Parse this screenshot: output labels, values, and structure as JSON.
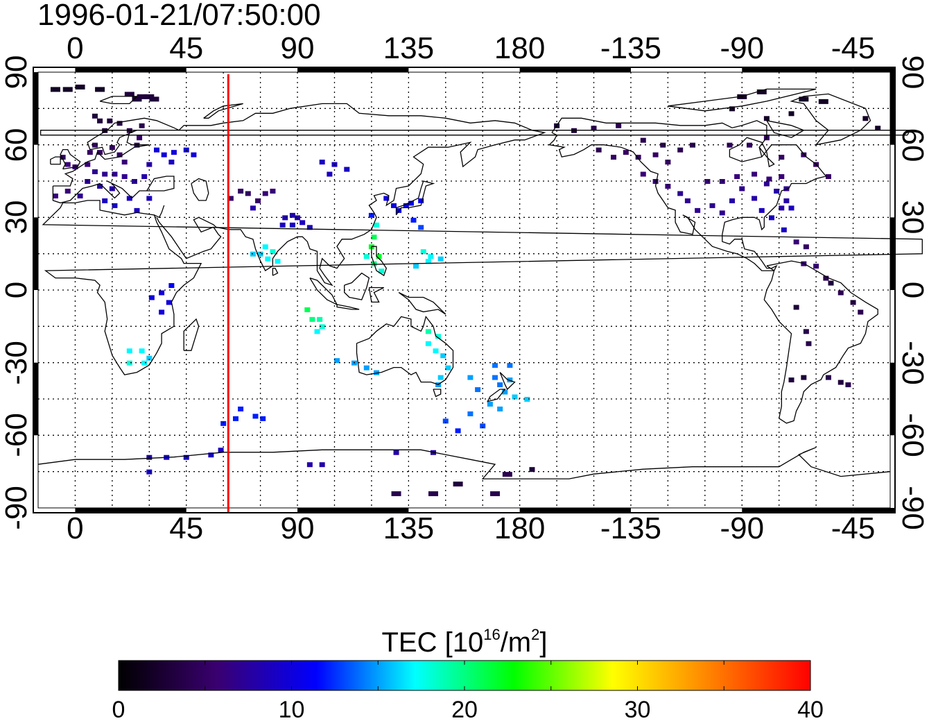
{
  "title": "1996-01-21/07:50:00",
  "map": {
    "projection": "cylindrical equidistant",
    "lon_range": [
      -15,
      330
    ],
    "lat_range": [
      -90,
      90
    ],
    "top_lon_labels": [
      "0",
      "45",
      "90",
      "135",
      "180",
      "-135",
      "-90",
      "-45"
    ],
    "bottom_lon_labels": [
      "0",
      "45",
      "90",
      "135",
      "180",
      "-135",
      "-90",
      "-45"
    ],
    "left_lat_labels": [
      "90",
      "60",
      "30",
      "0",
      "-30",
      "-60",
      "-90"
    ],
    "right_lat_labels": [
      "90",
      "60",
      "30",
      "0",
      "-30",
      "-60",
      "-90"
    ],
    "grid": "dotted, 15 degree spacing",
    "meridian_line_lon": 62,
    "meridian_line_color": "#ff0000"
  },
  "colorbar": {
    "label_main": "TEC  [10",
    "label_exp": "16",
    "label_unit": "/m",
    "label_exp2": "2",
    "label_end": "]",
    "ticks": [
      "0",
      "10",
      "20",
      "30",
      "40"
    ],
    "min": 0,
    "max": 40,
    "colors": [
      "#000000",
      "#3a0070",
      "#0000ff",
      "#00ffff",
      "#00ff00",
      "#ffff00",
      "#ff8000",
      "#ff0000"
    ]
  },
  "chart_data": {
    "type": "heatmap",
    "title": "1996-01-21/07:50:00",
    "value_label": "TEC [10^16/m^2]",
    "value_range": [
      0,
      40
    ],
    "points_lon_lat_tec": [
      [
        -8,
        83,
        2
      ],
      [
        -3,
        83,
        2
      ],
      [
        2,
        84,
        2
      ],
      [
        10,
        83,
        2
      ],
      [
        22,
        81,
        3
      ],
      [
        27,
        80,
        3
      ],
      [
        32,
        79,
        3
      ],
      [
        25,
        79,
        3
      ],
      [
        30,
        80,
        3
      ],
      [
        8,
        72,
        3
      ],
      [
        10,
        70,
        3
      ],
      [
        14,
        70,
        3
      ],
      [
        12,
        66,
        3
      ],
      [
        18,
        69,
        4
      ],
      [
        22,
        66,
        4
      ],
      [
        27,
        68,
        4
      ],
      [
        26,
        63,
        5
      ],
      [
        25,
        60,
        5
      ],
      [
        8,
        60,
        5
      ],
      [
        6,
        57,
        5
      ],
      [
        10,
        57,
        5
      ],
      [
        15,
        59,
        5
      ],
      [
        18,
        56,
        5
      ],
      [
        20,
        53,
        6
      ],
      [
        5,
        52,
        6
      ],
      [
        0,
        51,
        6
      ],
      [
        -3,
        52,
        6
      ],
      [
        -5,
        55,
        5
      ],
      [
        8,
        49,
        7
      ],
      [
        12,
        48,
        7
      ],
      [
        16,
        48,
        7
      ],
      [
        20,
        47,
        7
      ],
      [
        24,
        45,
        7
      ],
      [
        28,
        47,
        8
      ],
      [
        30,
        52,
        8
      ],
      [
        5,
        45,
        7
      ],
      [
        10,
        43,
        8
      ],
      [
        15,
        42,
        8
      ],
      [
        -3,
        41,
        6
      ],
      [
        -8,
        39,
        6
      ],
      [
        2,
        39,
        7
      ],
      [
        12,
        37,
        9
      ],
      [
        16,
        35,
        9
      ],
      [
        22,
        38,
        9
      ],
      [
        25,
        33,
        9
      ],
      [
        30,
        38,
        9
      ],
      [
        33,
        58,
        10
      ],
      [
        36,
        56,
        10
      ],
      [
        40,
        57,
        10
      ],
      [
        45,
        58,
        10
      ],
      [
        39,
        53,
        9
      ],
      [
        48,
        56,
        10
      ],
      [
        63,
        38,
        5
      ],
      [
        67,
        41,
        5
      ],
      [
        70,
        40,
        5
      ],
      [
        74,
        37,
        5
      ],
      [
        77,
        40,
        6
      ],
      [
        80,
        41,
        6
      ],
      [
        72,
        34,
        8
      ],
      [
        85,
        30,
        8
      ],
      [
        88,
        31,
        8
      ],
      [
        90,
        30,
        8
      ],
      [
        84,
        27,
        9
      ],
      [
        88,
        27,
        9
      ],
      [
        92,
        28,
        9
      ],
      [
        95,
        26,
        9
      ],
      [
        77,
        18,
        17
      ],
      [
        80,
        16,
        18
      ],
      [
        82,
        12,
        17
      ],
      [
        78,
        13,
        17
      ],
      [
        75,
        15,
        16
      ],
      [
        72,
        15,
        16
      ],
      [
        100,
        53,
        9
      ],
      [
        105,
        52,
        9
      ],
      [
        110,
        50,
        9
      ],
      [
        103,
        48,
        9
      ],
      [
        120,
        31,
        12
      ],
      [
        122,
        27,
        18
      ],
      [
        121,
        22,
        21
      ],
      [
        120,
        18,
        22
      ],
      [
        123,
        14,
        22
      ],
      [
        121,
        11,
        20
      ],
      [
        124,
        8,
        18
      ],
      [
        118,
        14,
        18
      ],
      [
        126,
        38,
        10
      ],
      [
        129,
        35,
        10
      ],
      [
        131,
        33,
        11
      ],
      [
        134,
        35,
        11
      ],
      [
        136,
        36,
        11
      ],
      [
        140,
        37,
        11
      ],
      [
        137,
        29,
        12
      ],
      [
        140,
        26,
        13
      ],
      [
        141,
        16,
        18
      ],
      [
        144,
        14,
        17
      ],
      [
        148,
        13,
        16
      ],
      [
        138,
        10,
        16
      ],
      [
        143,
        12,
        17
      ],
      [
        31,
        -3,
        10
      ],
      [
        35,
        -1,
        10
      ],
      [
        38,
        -5,
        10
      ],
      [
        35,
        -9,
        10
      ],
      [
        39,
        2,
        11
      ],
      [
        22,
        -25,
        17
      ],
      [
        27,
        -25,
        17
      ],
      [
        28,
        -30,
        17
      ],
      [
        22,
        -30,
        18
      ],
      [
        30,
        -28,
        16
      ],
      [
        94,
        -8,
        21
      ],
      [
        96,
        -12,
        20
      ],
      [
        99,
        -12,
        19
      ],
      [
        100,
        -15,
        18
      ],
      [
        98,
        -17,
        17
      ],
      [
        106,
        -29,
        15
      ],
      [
        113,
        -30,
        15
      ],
      [
        118,
        -32,
        15
      ],
      [
        122,
        -34,
        15
      ],
      [
        143,
        -17,
        19
      ],
      [
        147,
        -19,
        18
      ],
      [
        143,
        -22,
        17
      ],
      [
        146,
        -25,
        17
      ],
      [
        149,
        -27,
        16
      ],
      [
        151,
        -32,
        16
      ],
      [
        148,
        -36,
        16
      ],
      [
        147,
        -39,
        15
      ],
      [
        160,
        -36,
        15
      ],
      [
        163,
        -41,
        14
      ],
      [
        170,
        -36,
        14
      ],
      [
        172,
        -39,
        14
      ],
      [
        176,
        -37,
        15
      ],
      [
        174,
        -42,
        15
      ],
      [
        178,
        -44,
        16
      ],
      [
        183,
        -45,
        16
      ],
      [
        176,
        -31,
        14
      ],
      [
        170,
        -31,
        14
      ],
      [
        168,
        -47,
        15
      ],
      [
        172,
        -49,
        15
      ],
      [
        160,
        -51,
        14
      ],
      [
        165,
        -56,
        13
      ],
      [
        150,
        -54,
        13
      ],
      [
        155,
        -58,
        12
      ],
      [
        67,
        -49,
        12
      ],
      [
        73,
        -52,
        12
      ],
      [
        65,
        -53,
        12
      ],
      [
        76,
        -53,
        12
      ],
      [
        60,
        -55,
        12
      ],
      [
        30,
        -69,
        8
      ],
      [
        37,
        -69,
        9
      ],
      [
        45,
        -69,
        9
      ],
      [
        55,
        -68,
        9
      ],
      [
        59,
        -66,
        9
      ],
      [
        100,
        -72,
        8
      ],
      [
        95,
        -72,
        8
      ],
      [
        130,
        -67,
        8
      ],
      [
        145,
        -67,
        8
      ],
      [
        130,
        -84,
        4
      ],
      [
        145,
        -84,
        4
      ],
      [
        155,
        -80,
        3
      ],
      [
        170,
        -84,
        4
      ],
      [
        175,
        -76,
        4
      ],
      [
        185,
        -74,
        3
      ],
      [
        30,
        -75,
        9
      ],
      [
        195,
        68,
        3
      ],
      [
        202,
        66,
        3
      ],
      [
        210,
        67,
        4
      ],
      [
        220,
        68,
        4
      ],
      [
        230,
        62,
        4
      ],
      [
        238,
        60,
        4
      ],
      [
        245,
        58,
        4
      ],
      [
        250,
        60,
        4
      ],
      [
        212,
        58,
        4
      ],
      [
        218,
        55,
        5
      ],
      [
        223,
        57,
        5
      ],
      [
        228,
        55,
        5
      ],
      [
        235,
        56,
        5
      ],
      [
        240,
        53,
        5
      ],
      [
        230,
        48,
        6
      ],
      [
        235,
        45,
        6
      ],
      [
        240,
        43,
        6
      ],
      [
        245,
        40,
        7
      ],
      [
        248,
        37,
        7
      ],
      [
        252,
        33,
        7
      ],
      [
        258,
        35,
        7
      ],
      [
        262,
        32,
        7
      ],
      [
        266,
        37,
        8
      ],
      [
        270,
        42,
        7
      ],
      [
        275,
        38,
        8
      ],
      [
        280,
        44,
        7
      ],
      [
        284,
        41,
        8
      ],
      [
        288,
        37,
        8
      ],
      [
        286,
        34,
        8
      ],
      [
        282,
        30,
        9
      ],
      [
        278,
        33,
        9
      ],
      [
        290,
        34,
        9
      ],
      [
        256,
        45,
        6
      ],
      [
        262,
        45,
        6
      ],
      [
        268,
        47,
        6
      ],
      [
        275,
        48,
        6
      ],
      [
        281,
        46,
        6
      ],
      [
        286,
        47,
        6
      ],
      [
        288,
        42,
        7
      ],
      [
        265,
        60,
        5
      ],
      [
        273,
        60,
        5
      ],
      [
        280,
        63,
        5
      ],
      [
        286,
        55,
        5
      ],
      [
        295,
        56,
        5
      ],
      [
        305,
        47,
        5
      ],
      [
        300,
        52,
        5
      ],
      [
        287,
        25,
        9
      ],
      [
        292,
        20,
        6
      ],
      [
        296,
        18,
        5
      ],
      [
        295,
        11,
        6
      ],
      [
        300,
        10,
        6
      ],
      [
        304,
        5,
        4
      ],
      [
        306,
        3,
        3
      ],
      [
        310,
        -1,
        4
      ],
      [
        315,
        -5,
        3
      ],
      [
        318,
        -9,
        4
      ],
      [
        292,
        -7,
        3
      ],
      [
        296,
        -17,
        4
      ],
      [
        297,
        -22,
        4
      ],
      [
        290,
        -37,
        3
      ],
      [
        295,
        -36,
        3
      ],
      [
        305,
        -36,
        4
      ],
      [
        310,
        -38,
        3
      ],
      [
        313,
        -39,
        4
      ],
      [
        270,
        80,
        2
      ],
      [
        278,
        82,
        2
      ],
      [
        295,
        79,
        2
      ],
      [
        303,
        78,
        2
      ],
      [
        320,
        71,
        2
      ],
      [
        325,
        67,
        2
      ],
      [
        266,
        75,
        2
      ],
      [
        280,
        71,
        2
      ],
      [
        290,
        73,
        2
      ]
    ]
  }
}
